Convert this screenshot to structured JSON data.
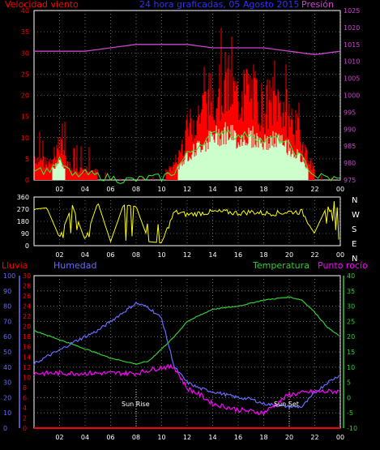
{
  "colors": {
    "wind": "#ff0000",
    "pressure": "#cc44cc",
    "title": "#3030ff",
    "direction": "#ffff00",
    "humidity": "#6a6aff",
    "temperature": "#33cc33",
    "dewpoint": "#ff00ff",
    "rain": "#ff0000",
    "axis_text": "#ffffff",
    "grid": "#aaaaaa"
  },
  "header": {
    "wind_label": "Velocidad viento",
    "title": "24 hora graficadas, 05 Agosto 2015",
    "pressure_label": "Presión"
  },
  "panel2": {
    "compass": [
      "N",
      "W",
      "S",
      "E",
      "N"
    ]
  },
  "panel3": {
    "rain_label": "Lluvia",
    "humidity_label": "Humedad",
    "temp_label": "Temperatura",
    "dew_label": "Punto rocío",
    "sunrise": "Sun Rise",
    "sunset": "Sun Set"
  },
  "chart_data": [
    {
      "type": "line",
      "x_hours": [
        "02",
        "04",
        "06",
        "08",
        "10",
        "12",
        "14",
        "16",
        "18",
        "20",
        "22",
        "00"
      ],
      "y_left_ticks": [
        "40",
        "35",
        "30",
        "25",
        "20",
        "15",
        "10",
        "5",
        "0"
      ],
      "y_right_ticks": [
        "1025",
        "1020",
        "1015",
        "1010",
        "1005",
        "1000",
        "995",
        "990",
        "985",
        "980",
        "975"
      ],
      "series": [
        {
          "name": "Velocidad viento",
          "x": [
            0,
            1,
            2,
            3,
            4,
            5,
            6,
            7,
            8,
            9,
            10,
            11,
            12,
            13,
            14,
            15,
            16,
            17,
            18,
            19,
            20,
            21,
            22,
            23,
            24
          ],
          "y": [
            6,
            4,
            9,
            2,
            3,
            2,
            1,
            0,
            0,
            1,
            1,
            4,
            12,
            17,
            21,
            24,
            20,
            22,
            18,
            20,
            16,
            10,
            2,
            1,
            0
          ]
        },
        {
          "name": "Presión",
          "x": [
            0,
            2,
            4,
            6,
            8,
            10,
            12,
            14,
            16,
            18,
            20,
            22,
            24
          ],
          "y": [
            1013,
            1013,
            1013,
            1014,
            1015,
            1015,
            1015,
            1014,
            1014,
            1014,
            1013,
            1012,
            1013
          ]
        }
      ]
    },
    {
      "type": "line",
      "x_hours": [
        "02",
        "04",
        "06",
        "08",
        "10",
        "12",
        "14",
        "16",
        "18",
        "20",
        "22",
        "00"
      ],
      "y_ticks": [
        "360",
        "270",
        "180",
        "90",
        "0"
      ],
      "series": [
        {
          "name": "Dirección",
          "x": [
            0,
            1,
            2,
            3,
            4,
            5,
            6,
            7,
            8,
            9,
            10,
            11,
            12,
            13,
            14,
            15,
            16,
            17,
            18,
            19,
            20,
            21,
            22,
            23,
            24
          ],
          "y": [
            270,
            280,
            60,
            300,
            40,
            320,
            30,
            300,
            290,
            30,
            20,
            250,
            230,
            240,
            250,
            250,
            240,
            250,
            240,
            240,
            250,
            250,
            100,
            300,
            10
          ]
        }
      ]
    },
    {
      "type": "line",
      "x_hours": [
        "02",
        "04",
        "06",
        "08",
        "10",
        "12",
        "14",
        "16",
        "18",
        "20",
        "22",
        "00"
      ],
      "y_rain_ticks": [
        "30",
        "28",
        "26",
        "24",
        "22",
        "20",
        "18",
        "16",
        "14",
        "12",
        "10",
        "8",
        "6",
        "4",
        "2",
        "0"
      ],
      "y_humidity_ticks": [
        "100",
        "90",
        "80",
        "70",
        "60",
        "50",
        "40",
        "30",
        "20",
        "10",
        "0"
      ],
      "y_temp_ticks": [
        "40",
        "35",
        "30",
        "25",
        "20",
        "15",
        "10",
        "5",
        "0",
        "-5",
        "-10"
      ],
      "series": [
        {
          "name": "Humedad",
          "x": [
            0,
            1,
            2,
            3,
            4,
            5,
            6,
            7,
            8,
            9,
            10,
            11,
            12,
            13,
            14,
            15,
            16,
            17,
            18,
            19,
            20,
            21,
            22,
            23,
            24
          ],
          "y": [
            42,
            47,
            51,
            56,
            60,
            64,
            70,
            76,
            82,
            79,
            72,
            40,
            30,
            26,
            24,
            22,
            20,
            19,
            16,
            15,
            14,
            14,
            23,
            30,
            35
          ]
        },
        {
          "name": "Temperatura",
          "x": [
            0,
            2,
            4,
            6,
            8,
            9,
            10,
            11,
            12,
            14,
            16,
            18,
            20,
            21,
            22,
            23,
            24
          ],
          "y": [
            22,
            19,
            16,
            13,
            11,
            12,
            16,
            20,
            25,
            29,
            30,
            32,
            33,
            32,
            28,
            23,
            20
          ]
        },
        {
          "name": "Punto rocío",
          "x": [
            0,
            2,
            4,
            6,
            8,
            10,
            11,
            12,
            13,
            14,
            16,
            18,
            19,
            20,
            22,
            24
          ],
          "y": [
            8,
            8,
            8,
            8,
            8,
            10,
            10,
            3,
            1,
            -2,
            -4,
            -5,
            -2,
            1,
            2,
            2
          ]
        },
        {
          "name": "Lluvia",
          "x": [
            0,
            24
          ],
          "y": [
            0,
            0
          ]
        }
      ]
    }
  ]
}
